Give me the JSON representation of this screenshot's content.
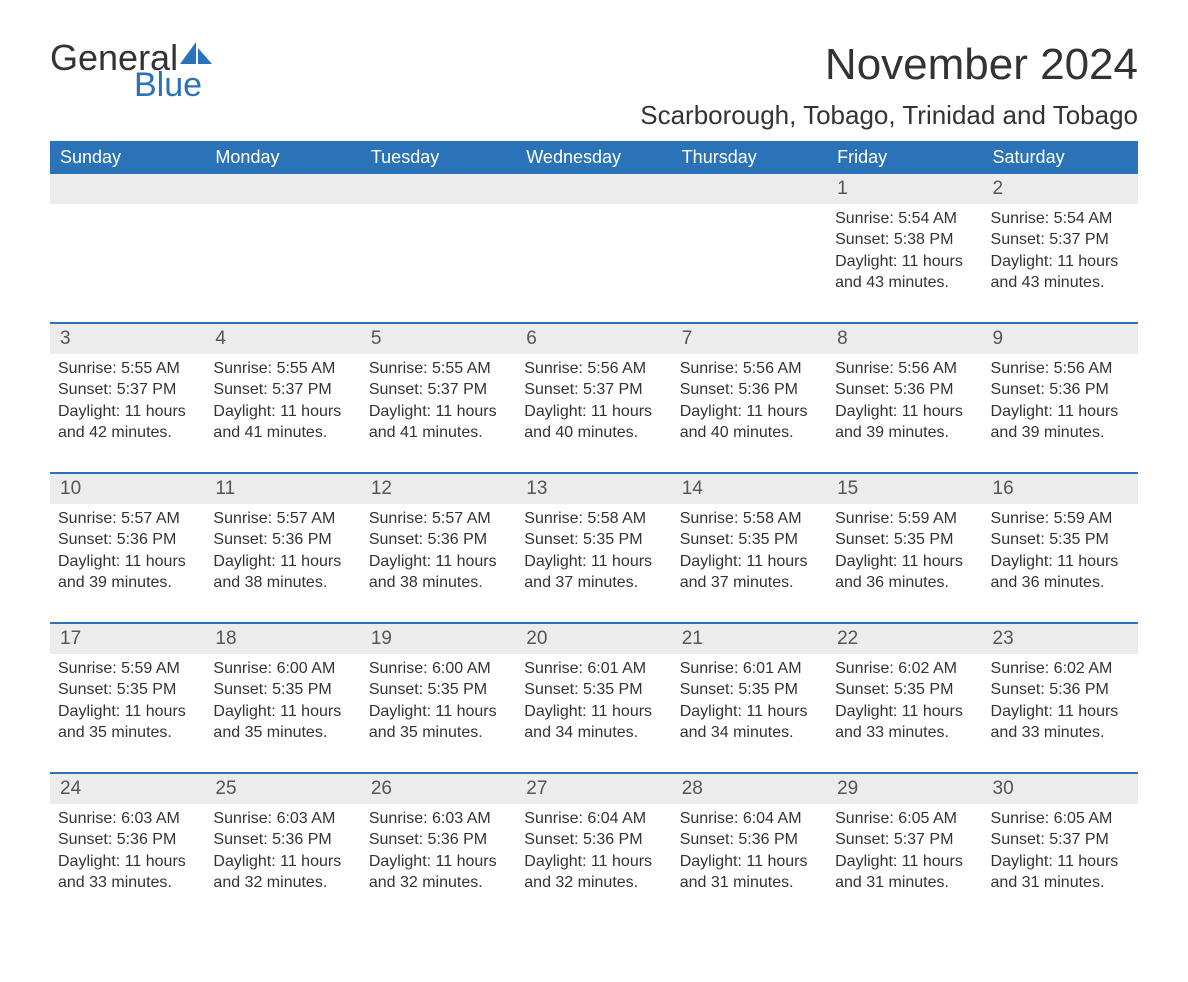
{
  "brand": {
    "general": "General",
    "blue": "Blue",
    "accent": "#2a73b8"
  },
  "title": "November 2024",
  "location": "Scarborough, Tobago, Trinidad and Tobago",
  "headers": [
    "Sunday",
    "Monday",
    "Tuesday",
    "Wednesday",
    "Thursday",
    "Friday",
    "Saturday"
  ],
  "labels": {
    "sunrise": "Sunrise:",
    "sunset": "Sunset:",
    "daylight": "Daylight:"
  },
  "style": {
    "header_bg": "#2a73b8",
    "header_text": "#ffffff",
    "row_divider": "#2a73b8",
    "daynum_bg": "#ececec",
    "body_text": "#333333",
    "font_family": "Arial",
    "th_fontsize": 18,
    "cell_fontsize": 16,
    "title_fontsize": 44,
    "location_fontsize": 26
  },
  "weeks": [
    [
      {
        "empty": true
      },
      {
        "empty": true
      },
      {
        "empty": true
      },
      {
        "empty": true
      },
      {
        "empty": true
      },
      {
        "day": "1",
        "sunrise": "5:54 AM",
        "sunset": "5:38 PM",
        "daylight": "11 hours and 43 minutes."
      },
      {
        "day": "2",
        "sunrise": "5:54 AM",
        "sunset": "5:37 PM",
        "daylight": "11 hours and 43 minutes."
      }
    ],
    [
      {
        "day": "3",
        "sunrise": "5:55 AM",
        "sunset": "5:37 PM",
        "daylight": "11 hours and 42 minutes."
      },
      {
        "day": "4",
        "sunrise": "5:55 AM",
        "sunset": "5:37 PM",
        "daylight": "11 hours and 41 minutes."
      },
      {
        "day": "5",
        "sunrise": "5:55 AM",
        "sunset": "5:37 PM",
        "daylight": "11 hours and 41 minutes."
      },
      {
        "day": "6",
        "sunrise": "5:56 AM",
        "sunset": "5:37 PM",
        "daylight": "11 hours and 40 minutes."
      },
      {
        "day": "7",
        "sunrise": "5:56 AM",
        "sunset": "5:36 PM",
        "daylight": "11 hours and 40 minutes."
      },
      {
        "day": "8",
        "sunrise": "5:56 AM",
        "sunset": "5:36 PM",
        "daylight": "11 hours and 39 minutes."
      },
      {
        "day": "9",
        "sunrise": "5:56 AM",
        "sunset": "5:36 PM",
        "daylight": "11 hours and 39 minutes."
      }
    ],
    [
      {
        "day": "10",
        "sunrise": "5:57 AM",
        "sunset": "5:36 PM",
        "daylight": "11 hours and 39 minutes."
      },
      {
        "day": "11",
        "sunrise": "5:57 AM",
        "sunset": "5:36 PM",
        "daylight": "11 hours and 38 minutes."
      },
      {
        "day": "12",
        "sunrise": "5:57 AM",
        "sunset": "5:36 PM",
        "daylight": "11 hours and 38 minutes."
      },
      {
        "day": "13",
        "sunrise": "5:58 AM",
        "sunset": "5:35 PM",
        "daylight": "11 hours and 37 minutes."
      },
      {
        "day": "14",
        "sunrise": "5:58 AM",
        "sunset": "5:35 PM",
        "daylight": "11 hours and 37 minutes."
      },
      {
        "day": "15",
        "sunrise": "5:59 AM",
        "sunset": "5:35 PM",
        "daylight": "11 hours and 36 minutes."
      },
      {
        "day": "16",
        "sunrise": "5:59 AM",
        "sunset": "5:35 PM",
        "daylight": "11 hours and 36 minutes."
      }
    ],
    [
      {
        "day": "17",
        "sunrise": "5:59 AM",
        "sunset": "5:35 PM",
        "daylight": "11 hours and 35 minutes."
      },
      {
        "day": "18",
        "sunrise": "6:00 AM",
        "sunset": "5:35 PM",
        "daylight": "11 hours and 35 minutes."
      },
      {
        "day": "19",
        "sunrise": "6:00 AM",
        "sunset": "5:35 PM",
        "daylight": "11 hours and 35 minutes."
      },
      {
        "day": "20",
        "sunrise": "6:01 AM",
        "sunset": "5:35 PM",
        "daylight": "11 hours and 34 minutes."
      },
      {
        "day": "21",
        "sunrise": "6:01 AM",
        "sunset": "5:35 PM",
        "daylight": "11 hours and 34 minutes."
      },
      {
        "day": "22",
        "sunrise": "6:02 AM",
        "sunset": "5:35 PM",
        "daylight": "11 hours and 33 minutes."
      },
      {
        "day": "23",
        "sunrise": "6:02 AM",
        "sunset": "5:36 PM",
        "daylight": "11 hours and 33 minutes."
      }
    ],
    [
      {
        "day": "24",
        "sunrise": "6:03 AM",
        "sunset": "5:36 PM",
        "daylight": "11 hours and 33 minutes."
      },
      {
        "day": "25",
        "sunrise": "6:03 AM",
        "sunset": "5:36 PM",
        "daylight": "11 hours and 32 minutes."
      },
      {
        "day": "26",
        "sunrise": "6:03 AM",
        "sunset": "5:36 PM",
        "daylight": "11 hours and 32 minutes."
      },
      {
        "day": "27",
        "sunrise": "6:04 AM",
        "sunset": "5:36 PM",
        "daylight": "11 hours and 32 minutes."
      },
      {
        "day": "28",
        "sunrise": "6:04 AM",
        "sunset": "5:36 PM",
        "daylight": "11 hours and 31 minutes."
      },
      {
        "day": "29",
        "sunrise": "6:05 AM",
        "sunset": "5:37 PM",
        "daylight": "11 hours and 31 minutes."
      },
      {
        "day": "30",
        "sunrise": "6:05 AM",
        "sunset": "5:37 PM",
        "daylight": "11 hours and 31 minutes."
      }
    ]
  ]
}
